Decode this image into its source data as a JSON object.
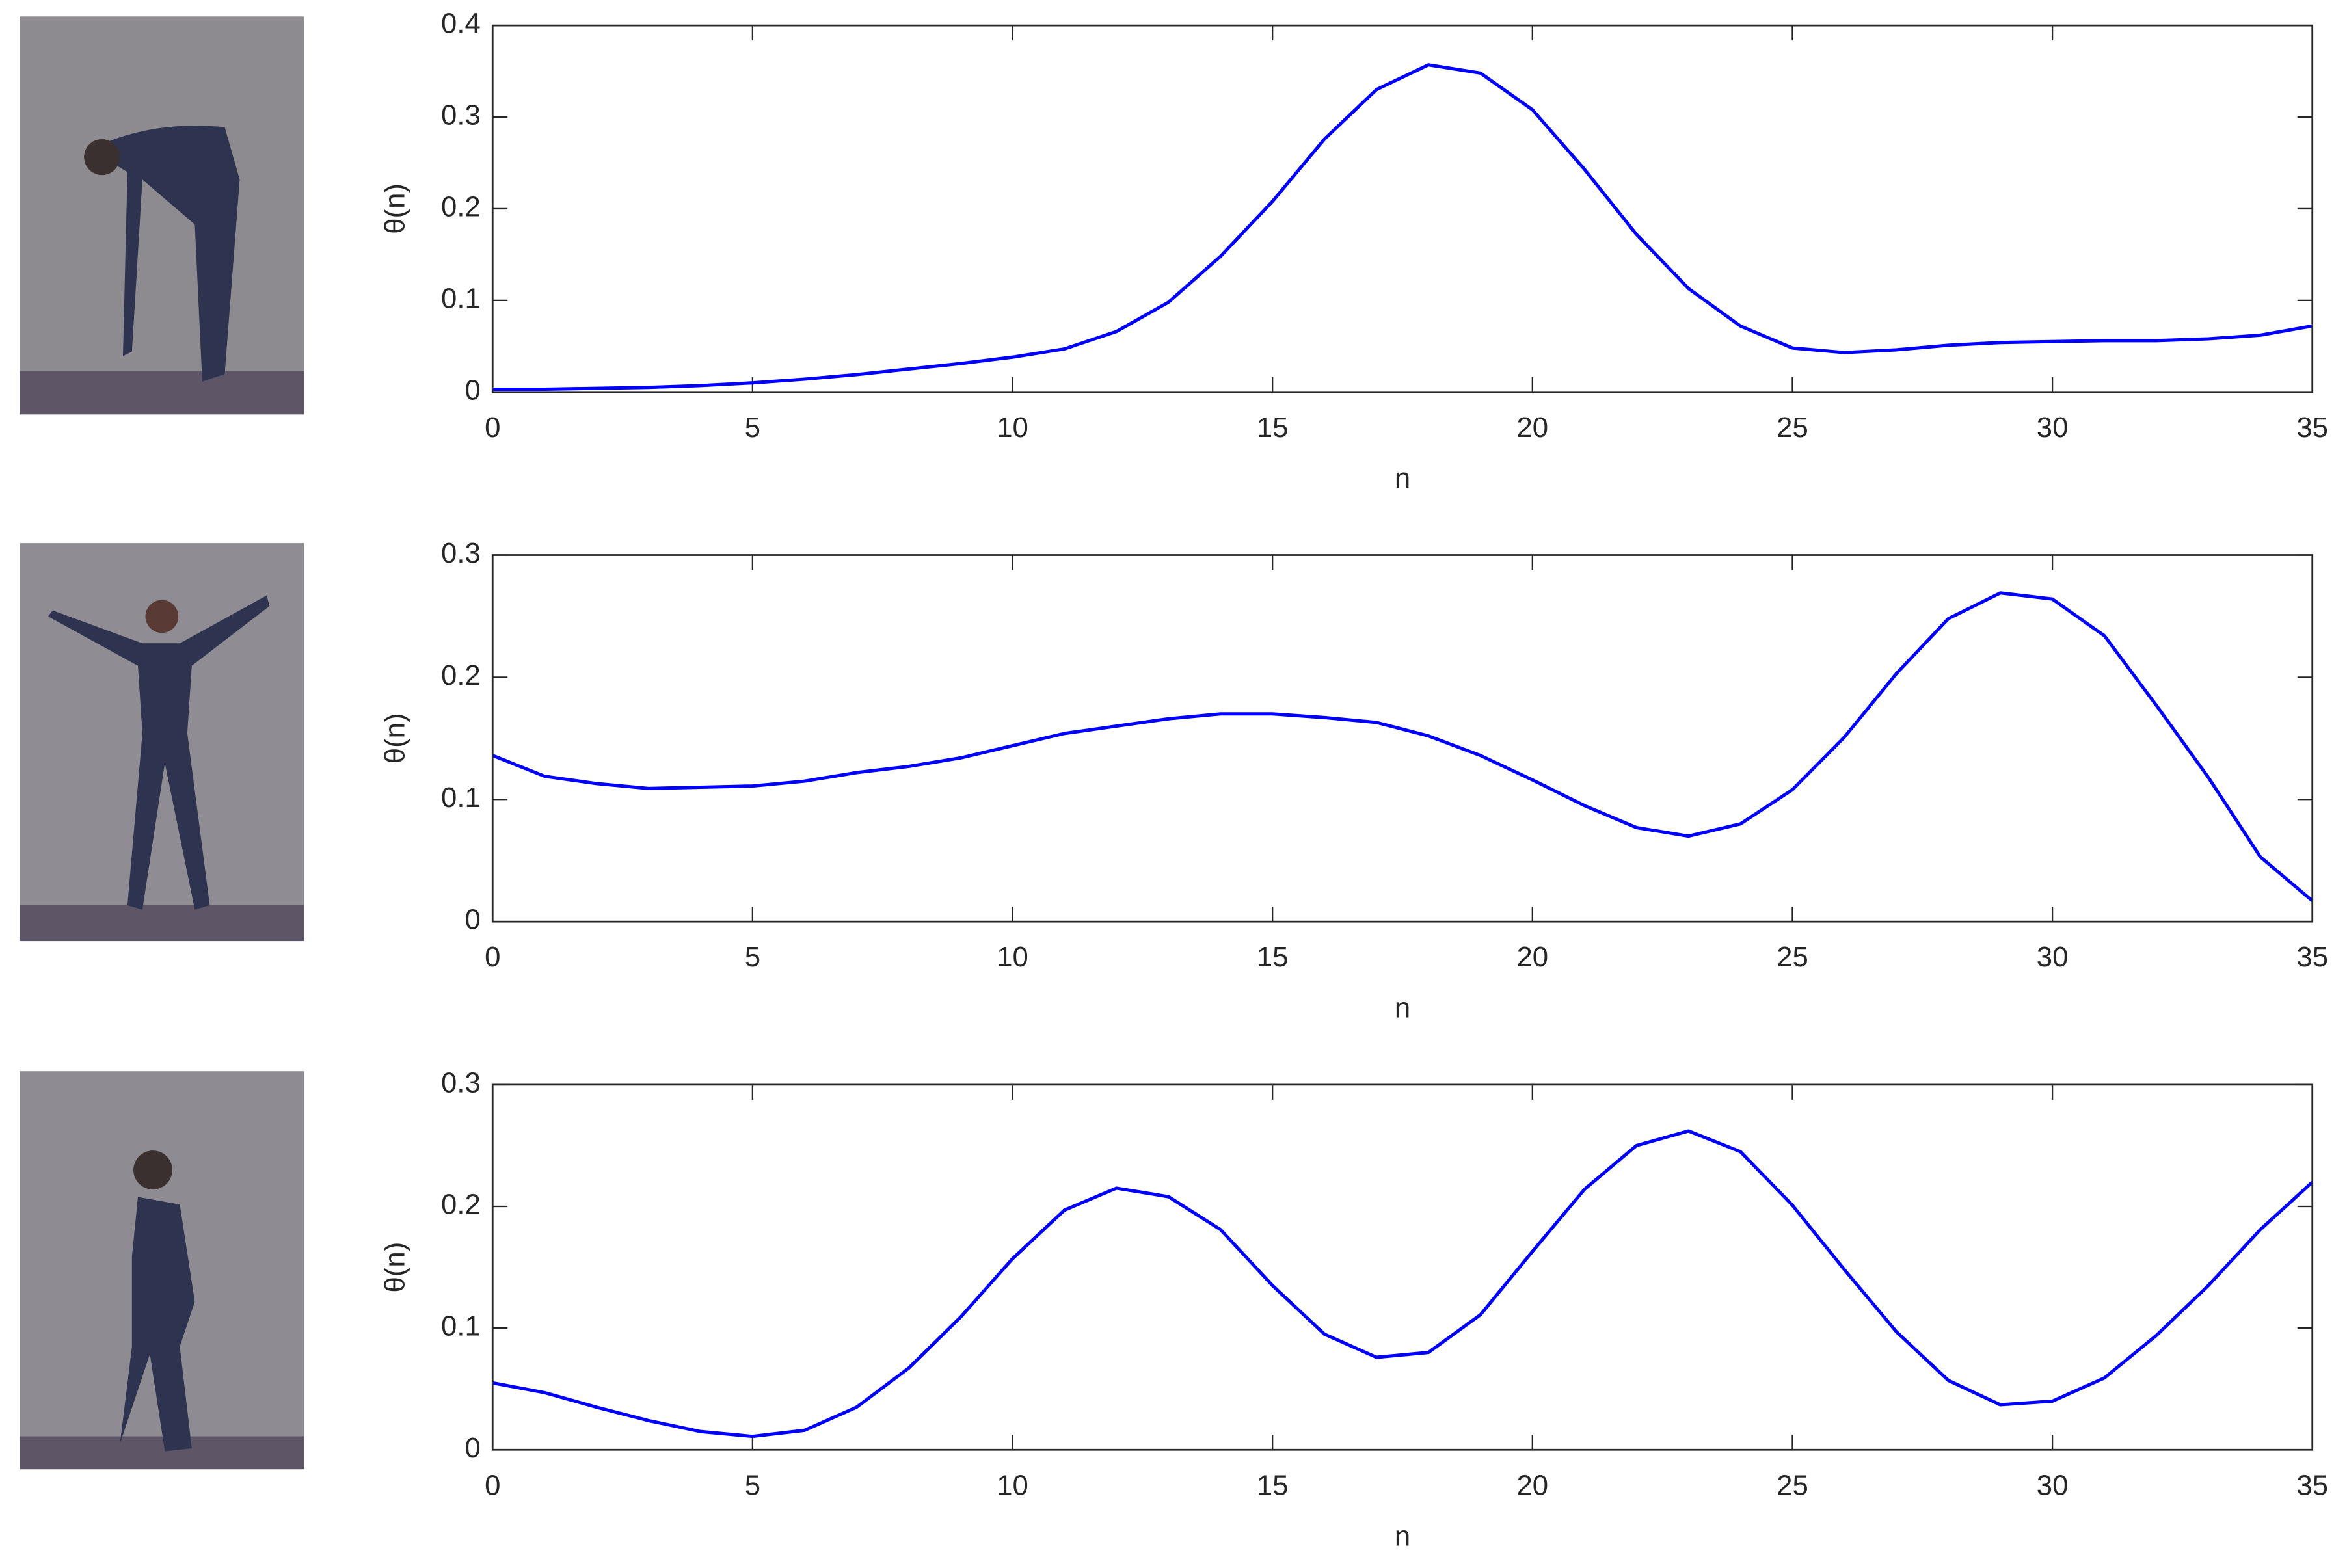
{
  "chart_data": [
    {
      "type": "line",
      "xlabel": "n",
      "ylabel": "θ(n)",
      "x": [
        0,
        1,
        2,
        3,
        4,
        5,
        6,
        7,
        8,
        9,
        10,
        11,
        12,
        13,
        14,
        15,
        16,
        17,
        18,
        19,
        20,
        21,
        22,
        23,
        24,
        25,
        26,
        27,
        28,
        29,
        30,
        31,
        32,
        33,
        34,
        35
      ],
      "values": [
        0.003,
        0.003,
        0.004,
        0.005,
        0.007,
        0.01,
        0.014,
        0.019,
        0.025,
        0.031,
        0.038,
        0.047,
        0.066,
        0.098,
        0.148,
        0.208,
        0.276,
        0.33,
        0.357,
        0.348,
        0.308,
        0.243,
        0.172,
        0.113,
        0.072,
        0.048,
        0.043,
        0.046,
        0.051,
        0.054,
        0.055,
        0.056,
        0.056,
        0.058,
        0.062,
        0.072
      ],
      "color": "#0000ff",
      "xlim": [
        0,
        35
      ],
      "xticks": [
        0,
        5,
        10,
        15,
        20,
        25,
        30,
        35
      ],
      "ylim": [
        0,
        0.4
      ],
      "yticks": [
        0,
        0.1,
        0.2,
        0.3,
        0.4
      ]
    },
    {
      "type": "line",
      "xlabel": "n",
      "ylabel": "θ(n)",
      "x": [
        0,
        1,
        2,
        3,
        4,
        5,
        6,
        7,
        8,
        9,
        10,
        11,
        12,
        13,
        14,
        15,
        16,
        17,
        18,
        19,
        20,
        21,
        22,
        23,
        24,
        25,
        26,
        27,
        28,
        29,
        30,
        31,
        32,
        33,
        34,
        35
      ],
      "values": [
        0.136,
        0.119,
        0.113,
        0.109,
        0.11,
        0.111,
        0.115,
        0.122,
        0.127,
        0.134,
        0.144,
        0.154,
        0.16,
        0.166,
        0.17,
        0.17,
        0.167,
        0.163,
        0.152,
        0.136,
        0.116,
        0.095,
        0.077,
        0.07,
        0.08,
        0.108,
        0.151,
        0.203,
        0.248,
        0.269,
        0.264,
        0.234,
        0.177,
        0.118,
        0.053,
        0.017
      ],
      "color": "#0000ff",
      "xlim": [
        0,
        35
      ],
      "xticks": [
        0,
        5,
        10,
        15,
        20,
        25,
        30,
        35
      ],
      "ylim": [
        0,
        0.3
      ],
      "yticks": [
        0,
        0.1,
        0.2,
        0.3
      ]
    },
    {
      "type": "line",
      "xlabel": "n",
      "ylabel": "θ(n)",
      "x": [
        0,
        1,
        2,
        3,
        4,
        5,
        6,
        7,
        8,
        9,
        10,
        11,
        12,
        13,
        14,
        15,
        16,
        17,
        18,
        19,
        20,
        21,
        22,
        23,
        24,
        25,
        26,
        27,
        28,
        29,
        30,
        31,
        32,
        33,
        34,
        35
      ],
      "values": [
        0.055,
        0.047,
        0.035,
        0.024,
        0.015,
        0.011,
        0.016,
        0.035,
        0.067,
        0.109,
        0.157,
        0.197,
        0.215,
        0.208,
        0.181,
        0.135,
        0.095,
        0.076,
        0.08,
        0.111,
        0.163,
        0.214,
        0.25,
        0.262,
        0.245,
        0.201,
        0.148,
        0.097,
        0.057,
        0.037,
        0.04,
        0.059,
        0.094,
        0.135,
        0.181,
        0.22
      ],
      "color": "#0000ff",
      "xlim": [
        0,
        35
      ],
      "xticks": [
        0,
        5,
        10,
        15,
        20,
        25,
        30,
        35
      ],
      "ylim": [
        0,
        0.3
      ],
      "yticks": [
        0,
        0.1,
        0.2,
        0.3
      ]
    }
  ]
}
